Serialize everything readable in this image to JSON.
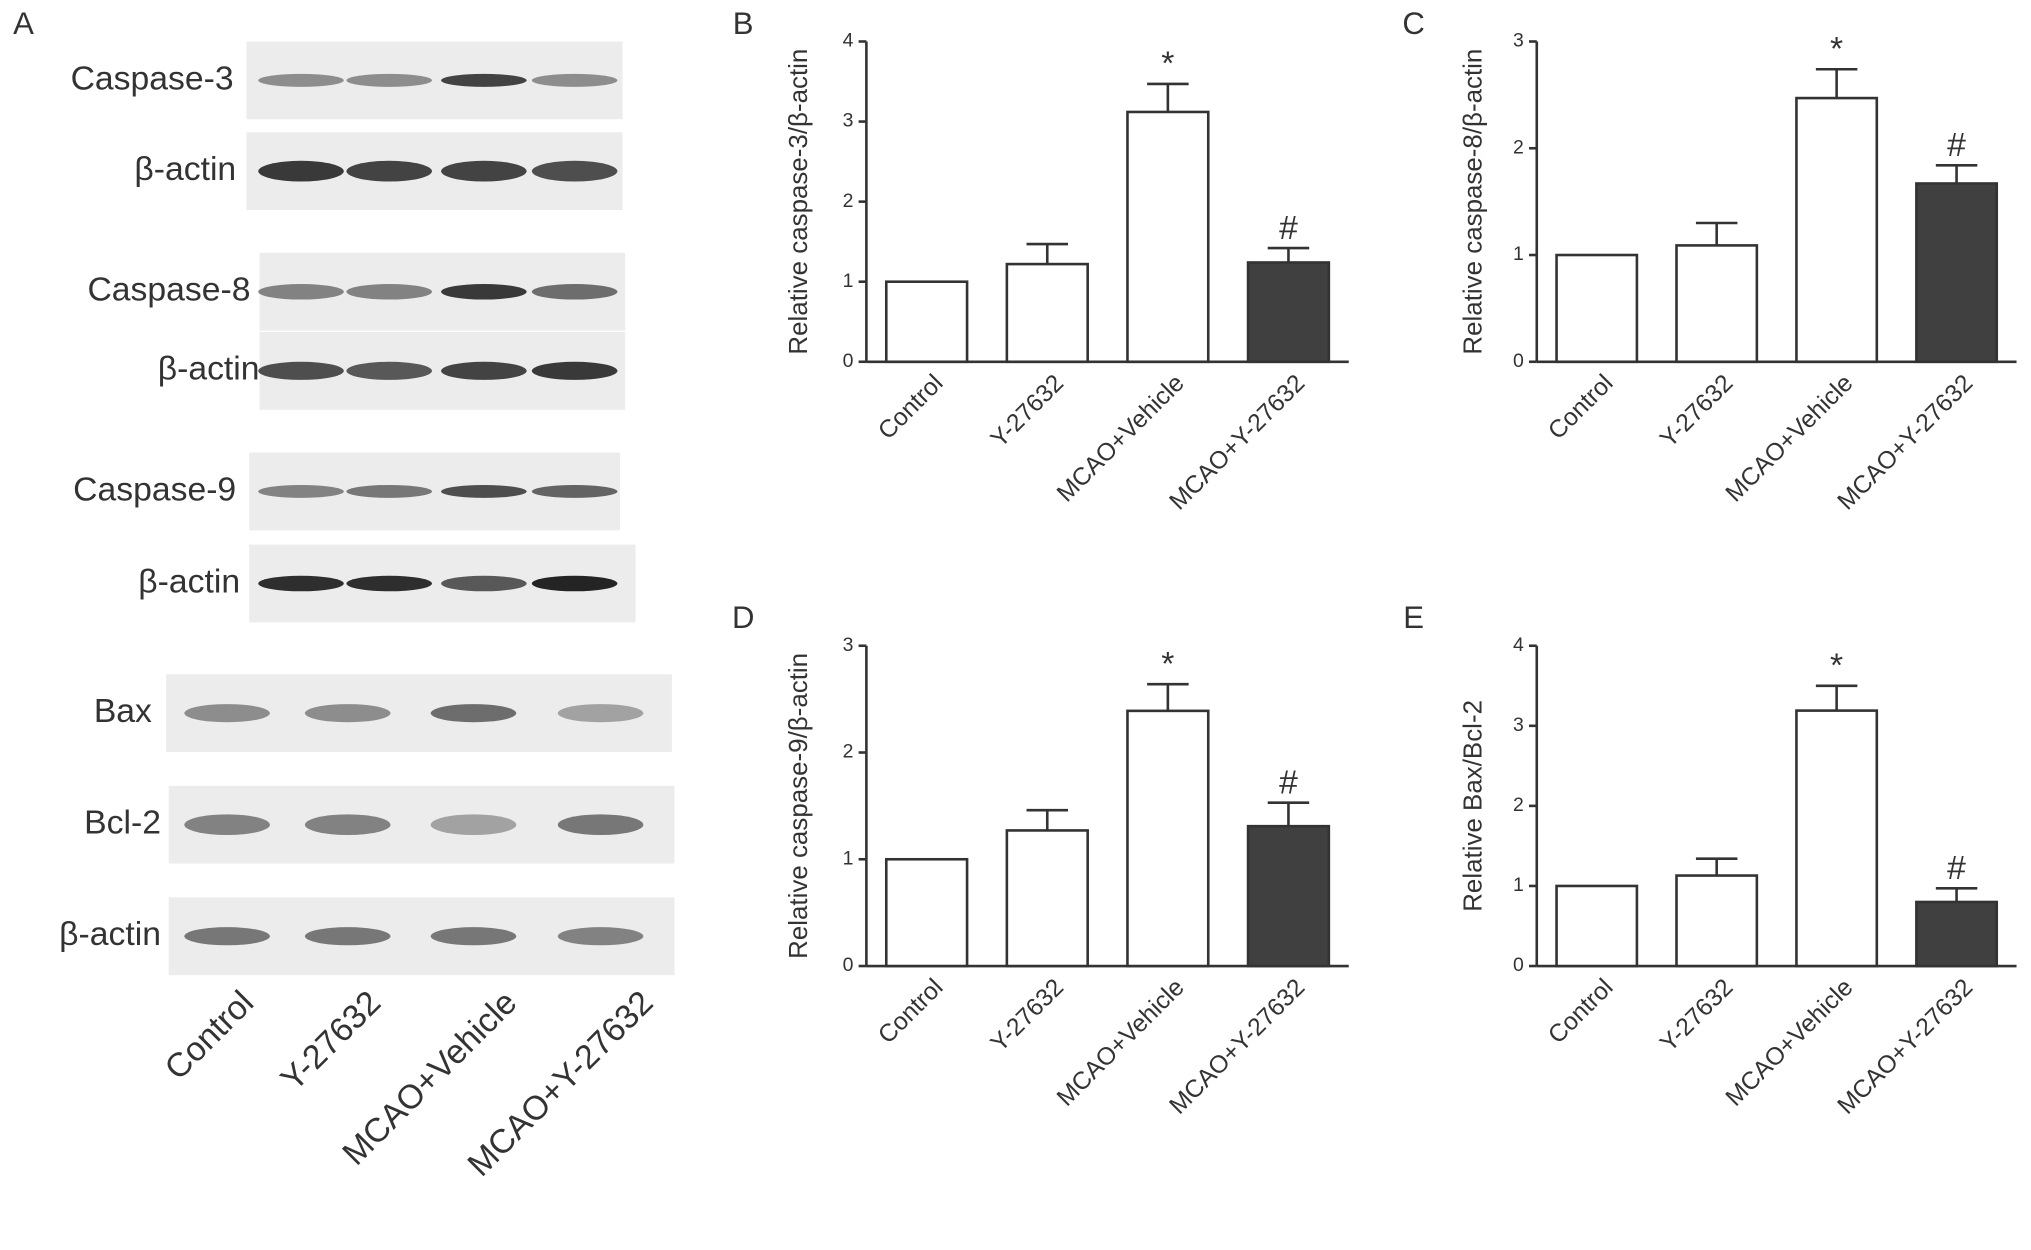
{
  "blot": {
    "label": "A",
    "rows": [
      "Caspase-3",
      "β-actin",
      "Caspase-8",
      "β-actin",
      "Caspase-9",
      "β-actin",
      "Bax",
      "Bcl-2",
      "β-actin"
    ],
    "lanes": [
      "Control",
      "Y-27632",
      "MCAO+Vehicle",
      "MCAO+Y-27632"
    ]
  },
  "chart_data": [
    {
      "type": "bar",
      "panel": "B",
      "y_label": "Relative caspase-3/β-actin",
      "categories": [
        "Control",
        "Y-27632",
        "MCAO+Vehicle",
        "MCAO+Y-27632"
      ],
      "values": [
        1,
        1.22,
        3.12,
        1.24
      ],
      "errors": [
        0,
        0.25,
        0.35,
        0.18
      ],
      "markers": [
        null,
        null,
        "*",
        "#"
      ],
      "colors": [
        "#ffffff",
        "#ffffff",
        "#ffffff",
        "#404040"
      ],
      "ylim": [
        0,
        4
      ],
      "yticks": [
        0,
        1,
        2,
        3,
        4
      ]
    },
    {
      "type": "bar",
      "panel": "C",
      "y_label": "Relative caspase-8/β-actin",
      "categories": [
        "Control",
        "Y-27632",
        "MCAO+Vehicle",
        "MCAO+Y-27632"
      ],
      "values": [
        1,
        1.09,
        2.47,
        1.67
      ],
      "errors": [
        0,
        0.21,
        0.27,
        0.17
      ],
      "markers": [
        null,
        null,
        "*",
        "#"
      ],
      "colors": [
        "#ffffff",
        "#ffffff",
        "#ffffff",
        "#404040"
      ],
      "ylim": [
        0,
        3
      ],
      "yticks": [
        0,
        1,
        2,
        3
      ]
    },
    {
      "type": "bar",
      "panel": "D",
      "y_label": "Relative caspase-9/β-actin",
      "categories": [
        "Control",
        "Y-27632",
        "MCAO+Vehicle",
        "MCAO+Y-27632"
      ],
      "values": [
        1,
        1.27,
        2.39,
        1.31
      ],
      "errors": [
        0,
        0.19,
        0.25,
        0.22
      ],
      "markers": [
        null,
        null,
        "*",
        "#"
      ],
      "colors": [
        "#ffffff",
        "#ffffff",
        "#ffffff",
        "#404040"
      ],
      "ylim": [
        0,
        3
      ],
      "yticks": [
        0,
        1,
        2,
        3
      ]
    },
    {
      "type": "bar",
      "panel": "E",
      "y_label": "Relative Bax/Bcl-2",
      "categories": [
        "Control",
        "Y-27632",
        "MCAO+Vehicle",
        "MCAO+Y-27632"
      ],
      "values": [
        1,
        1.13,
        3.19,
        0.8
      ],
      "errors": [
        0,
        0.21,
        0.31,
        0.17
      ],
      "markers": [
        null,
        null,
        "*",
        "#"
      ],
      "colors": [
        "#ffffff",
        "#ffffff",
        "#ffffff",
        "#404040"
      ],
      "ylim": [
        0,
        4
      ],
      "yticks": [
        0,
        1,
        2,
        3,
        4
      ]
    }
  ]
}
